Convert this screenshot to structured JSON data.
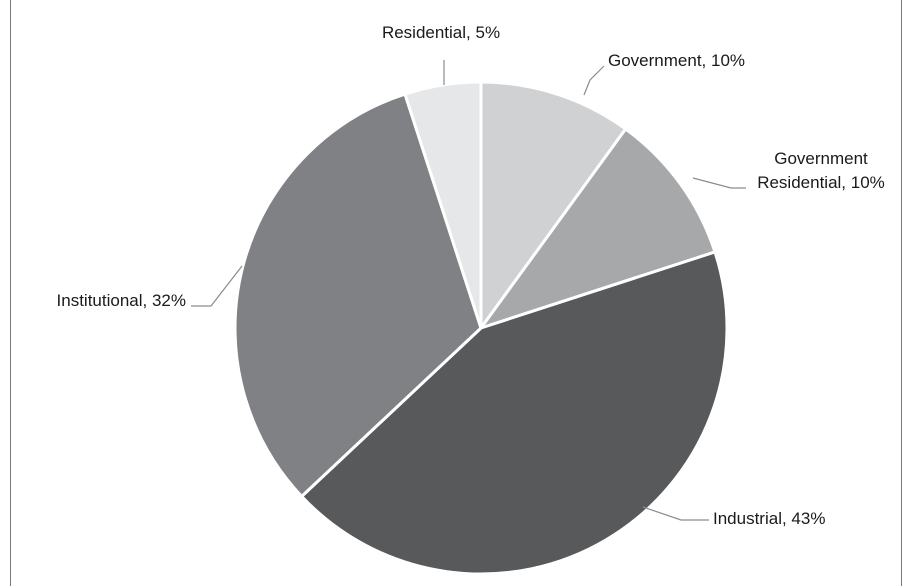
{
  "chart_data": {
    "type": "pie",
    "title": "",
    "slices": [
      {
        "label": "Government",
        "value": 10,
        "color": "#d0d1d3"
      },
      {
        "label": "Government Residential",
        "value": 10,
        "color": "#a7a8aa"
      },
      {
        "label": "Industrial",
        "value": 43,
        "color": "#58595b"
      },
      {
        "label": "Institutional",
        "value": 32,
        "color": "#808184"
      },
      {
        "label": "Residential",
        "value": 5,
        "color": "#e6e7e8"
      }
    ],
    "data_labels": [
      {
        "lines": [
          "Government, 10%"
        ]
      },
      {
        "lines": [
          "Government",
          "Residential, 10%"
        ]
      },
      {
        "lines": [
          "Industrial, 43%"
        ]
      },
      {
        "lines": [
          "Institutional, 32%"
        ]
      },
      {
        "lines": [
          "Residential, 5%"
        ]
      }
    ],
    "legend": "none"
  }
}
